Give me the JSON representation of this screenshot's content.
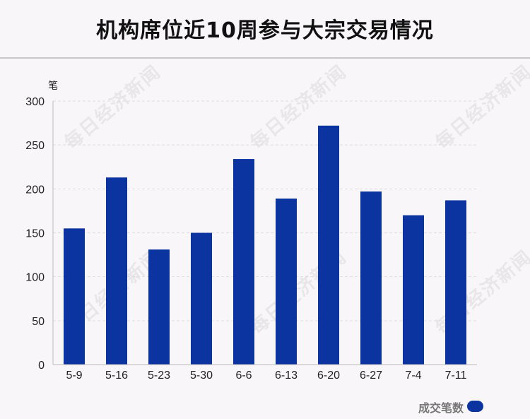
{
  "title": "机构席位近10周参与大宗交易情况",
  "watermark": "每日经济新闻",
  "colors": {
    "bar": "#0b34a0",
    "grid": "#dddddd",
    "axis": "#bbbbbb",
    "text": "#222222"
  },
  "chart_data": {
    "type": "bar",
    "categories": [
      "5-9",
      "5-16",
      "5-23",
      "5-30",
      "6-6",
      "6-13",
      "6-20",
      "6-27",
      "7-4",
      "7-11"
    ],
    "series": [
      {
        "name": "成交笔数",
        "values": [
          155,
          213,
          131,
          150,
          234,
          189,
          272,
          197,
          170,
          187
        ]
      }
    ],
    "ylabel": "笔",
    "ylim": [
      0,
      300
    ],
    "yticks": [
      0,
      50,
      100,
      150,
      200,
      250,
      300
    ],
    "grid": true,
    "legend": "bottom-right"
  }
}
